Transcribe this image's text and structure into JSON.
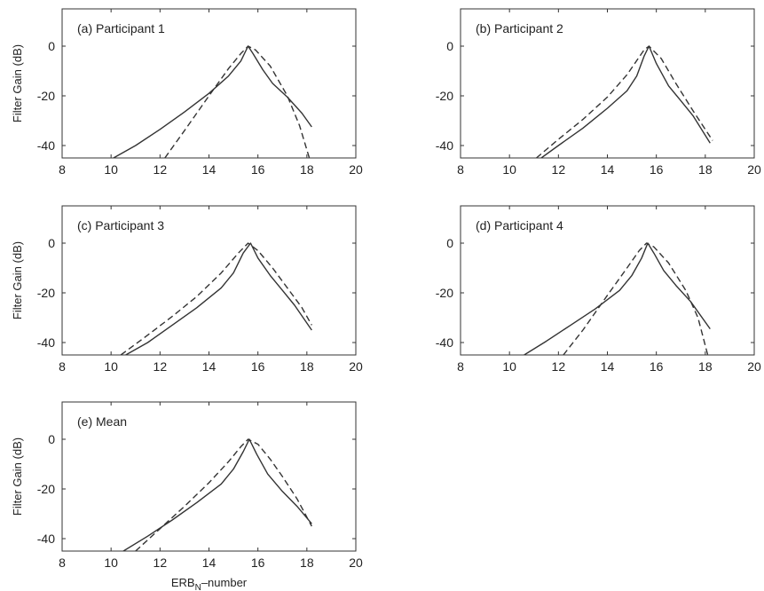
{
  "figure": {
    "ylabel": "Filter Gain (dB)",
    "xlabel_main": "ERB",
    "xlabel_sub": "N",
    "xlabel_suffix": "–number"
  },
  "chart_data": [
    {
      "type": "line",
      "title": "(a) Participant 1",
      "xlim": [
        8,
        20
      ],
      "ylim": [
        -45,
        15
      ],
      "xticks": [
        8,
        10,
        12,
        14,
        16,
        18,
        20
      ],
      "yticks": [
        -40,
        -20,
        0
      ],
      "series": [
        {
          "style": "solid",
          "x": [
            10.1,
            11,
            12,
            13,
            14,
            14.8,
            15.3,
            15.6,
            15.8,
            16.2,
            16.6,
            17.2,
            17.8,
            18.2
          ],
          "y": [
            -45,
            -40,
            -33.5,
            -26.5,
            -19,
            -12,
            -6,
            0,
            -3,
            -9.5,
            -15,
            -20.5,
            -27,
            -32.5
          ]
        },
        {
          "style": "dashed",
          "x": [
            12.2,
            13,
            14,
            14.8,
            15.3,
            15.6,
            15.9,
            16.5,
            17.2,
            17.7,
            18.1
          ],
          "y": [
            -45,
            -34,
            -20,
            -9,
            -3,
            0,
            -1.5,
            -8,
            -20,
            -32,
            -45
          ]
        }
      ]
    },
    {
      "type": "line",
      "title": "(b) Participant 2",
      "xlim": [
        8,
        20
      ],
      "ylim": [
        -45,
        15
      ],
      "xticks": [
        8,
        10,
        12,
        14,
        16,
        18,
        20
      ],
      "yticks": [
        -40,
        -20,
        0
      ],
      "series": [
        {
          "style": "solid",
          "x": [
            11.3,
            12,
            13,
            14,
            14.8,
            15.2,
            15.5,
            15.7,
            16,
            16.5,
            17,
            17.5,
            18.2
          ],
          "y": [
            -45,
            -40,
            -33,
            -25,
            -18,
            -12,
            -4,
            0,
            -7,
            -16,
            -22,
            -28,
            -39
          ]
        },
        {
          "style": "dashed",
          "x": [
            11.1,
            12,
            13,
            14,
            14.8,
            15.5,
            15.7,
            16.2,
            16.8,
            17.5,
            18.3
          ],
          "y": [
            -45,
            -37.5,
            -29.5,
            -20.5,
            -11.5,
            -1.5,
            0,
            -5,
            -15,
            -26,
            -38
          ]
        }
      ]
    },
    {
      "type": "line",
      "title": "(c) Participant 3",
      "xlim": [
        8,
        20
      ],
      "ylim": [
        -45,
        15
      ],
      "xticks": [
        8,
        10,
        12,
        14,
        16,
        18,
        20
      ],
      "yticks": [
        -40,
        -20,
        0
      ],
      "series": [
        {
          "style": "solid",
          "x": [
            10.6,
            11.5,
            12.5,
            13.5,
            14.5,
            15,
            15.4,
            15.7,
            16,
            16.5,
            17,
            17.5,
            18.2
          ],
          "y": [
            -45,
            -40,
            -33,
            -26,
            -18,
            -12,
            -4,
            0,
            -6,
            -13,
            -19,
            -25,
            -35
          ]
        },
        {
          "style": "dashed",
          "x": [
            10.4,
            11.5,
            12.5,
            13.5,
            14.5,
            15.2,
            15.6,
            16,
            16.6,
            17.2,
            17.8,
            18.2
          ],
          "y": [
            -45,
            -37,
            -29.5,
            -21.5,
            -12,
            -4,
            0,
            -3,
            -10,
            -18,
            -26,
            -33
          ]
        }
      ]
    },
    {
      "type": "line",
      "title": "(d) Participant 4",
      "xlim": [
        8,
        20
      ],
      "ylim": [
        -45,
        15
      ],
      "xticks": [
        8,
        10,
        12,
        14,
        16,
        18,
        20
      ],
      "yticks": [
        -40,
        -20,
        0
      ],
      "series": [
        {
          "style": "solid",
          "x": [
            10.6,
            11.5,
            12.5,
            13.5,
            14.5,
            15,
            15.4,
            15.65,
            15.9,
            16.3,
            16.8,
            17.4,
            18.2
          ],
          "y": [
            -45,
            -39.5,
            -33,
            -26.5,
            -19,
            -13,
            -6,
            0,
            -4,
            -11,
            -17,
            -23.5,
            -34.5
          ]
        },
        {
          "style": "dashed",
          "x": [
            12.2,
            13,
            14,
            14.8,
            15.3,
            15.6,
            15.9,
            16.5,
            17.2,
            17.7,
            18.1
          ],
          "y": [
            -45,
            -35,
            -21,
            -10,
            -3,
            0,
            -1.5,
            -8,
            -19,
            -30,
            -45
          ]
        }
      ]
    },
    {
      "type": "line",
      "title": "(e) Mean",
      "xlim": [
        8,
        20
      ],
      "ylim": [
        -45,
        15
      ],
      "xticks": [
        8,
        10,
        12,
        14,
        16,
        18,
        20
      ],
      "yticks": [
        -40,
        -20,
        0
      ],
      "series": [
        {
          "style": "solid",
          "x": [
            10.5,
            11.5,
            12.5,
            13.5,
            14.5,
            15,
            15.4,
            15.65,
            15.95,
            16.4,
            17,
            17.6,
            18.2
          ],
          "y": [
            -45,
            -39,
            -32.5,
            -25.5,
            -18,
            -12,
            -5,
            0,
            -6,
            -14,
            -21,
            -27,
            -34
          ]
        },
        {
          "style": "dashed",
          "x": [
            11,
            12,
            13,
            14,
            14.8,
            15.3,
            15.6,
            16,
            16.5,
            17,
            17.6,
            18.2
          ],
          "y": [
            -45,
            -36,
            -27,
            -17.5,
            -9,
            -3,
            0,
            -2,
            -8,
            -15,
            -24,
            -35
          ]
        }
      ]
    }
  ]
}
